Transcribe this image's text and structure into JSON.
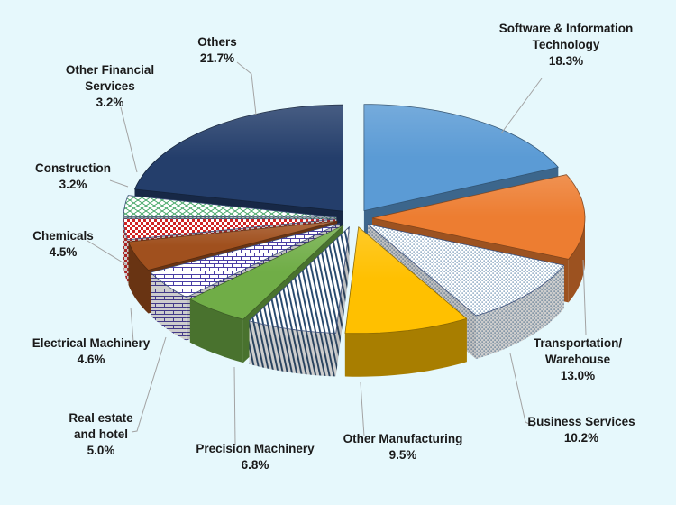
{
  "chart_data": {
    "type": "pie",
    "style": "3d-exploded",
    "title": "",
    "legend": "none",
    "start_angle_deg": 0,
    "direction": "clockwise",
    "background_color": "#E6F8FC",
    "label_color": "#1A1A1A",
    "leader_line_color": "#A3A3A3",
    "slices": [
      {
        "label": "Software & Information Technology",
        "name": "Software & Information\nTechnology",
        "value": 18.3,
        "pct_label": "18.3%",
        "color": "#5B9BD5",
        "pattern": null
      },
      {
        "label": "Transportation/ Warehouse",
        "name": "Transportation/\nWarehouse",
        "value": 13.0,
        "pct_label": "13.0%",
        "color": "#ED7D31",
        "pattern": null
      },
      {
        "label": "Business Services",
        "name": "Business Services",
        "value": 10.2,
        "pct_label": "10.2%",
        "color": "#41719C",
        "pattern": "dots"
      },
      {
        "label": "Other Manufacturing",
        "name": "Other Manufacturing",
        "value": 9.5,
        "pct_label": "9.5%",
        "color": "#FFC000",
        "pattern": null
      },
      {
        "label": "Precision Machinery",
        "name": "Precision Machinery",
        "value": 6.8,
        "pct_label": "6.8%",
        "color": "#24466B",
        "pattern": "vstripes"
      },
      {
        "label": "Real estate and hotel",
        "name": "Real estate\nand hotel",
        "value": 5.0,
        "pct_label": "5.0%",
        "color": "#70AD47",
        "pattern": null
      },
      {
        "label": "Electrical Machinery",
        "name": "Electrical Machinery",
        "value": 4.6,
        "pct_label": "4.6%",
        "color": "#4A3EA5",
        "pattern": "bricks"
      },
      {
        "label": "Chemicals",
        "name": "Chemicals",
        "value": 4.5,
        "pct_label": "4.5%",
        "color": "#A0501E",
        "pattern": null
      },
      {
        "label": "Construction",
        "name": "Construction",
        "value": 3.2,
        "pct_label": "3.2%",
        "color": "#D02323",
        "pattern": "checker"
      },
      {
        "label": "Other Financial Services",
        "name": "Other Financial\nServices",
        "value": 3.2,
        "pct_label": "3.2%",
        "color": "#37A05B",
        "pattern": "diaggrid"
      },
      {
        "label": "Others",
        "name": "Others",
        "value": 21.7,
        "pct_label": "21.7%",
        "color": "#243E6B",
        "pattern": null
      }
    ]
  }
}
